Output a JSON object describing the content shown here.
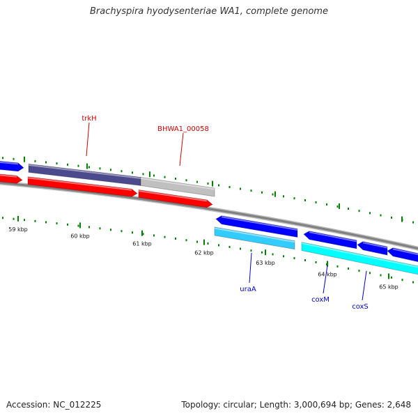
{
  "title": "Brachyspira hyodysenteriae WA1, complete genome",
  "footer": {
    "accession": "Accession: NC_012225",
    "summary": "Topology: circular; Length: 3,000,694 bp; Genes: 2,648"
  },
  "ticks": [
    "59 kbp",
    "60 kbp",
    "61 kbp",
    "62 kbp",
    "63 kbp",
    "64 kbp",
    "65 kbp"
  ],
  "gene_labels": [
    {
      "name": "trkH",
      "color": "#cc0000"
    },
    {
      "name": "BHWA1_00058",
      "color": "#cc0000"
    },
    {
      "name": "uraA",
      "color": "#0000cc"
    },
    {
      "name": "coxM",
      "color": "#0000cc"
    },
    {
      "name": "coxS",
      "color": "#0000cc"
    }
  ],
  "colors": {
    "forward_cds": "#0000ff",
    "forward_highlight": "#4a4a8c",
    "forward_other": "#c0c0c0",
    "reverse_cds": "#ff0000",
    "lower_cds_blue": "#0000ff",
    "lower_cds_cyan": "#33ccff",
    "lower_cds_aqua": "#00ffff",
    "backbone": "#808080",
    "tick_marks": "#008000"
  }
}
